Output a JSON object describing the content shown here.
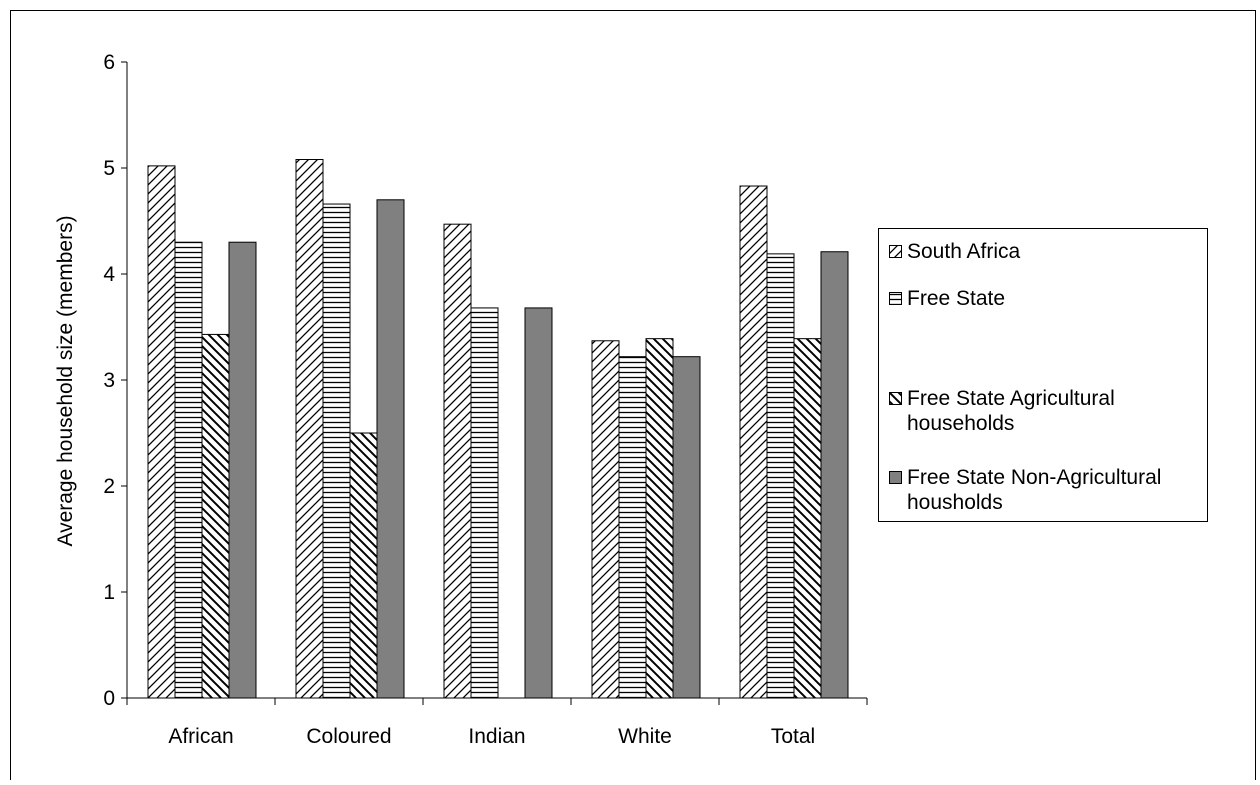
{
  "chart_data": {
    "type": "bar",
    "ylabel": "Average household size (members)",
    "ylim": [
      0,
      6
    ],
    "yticks": [
      "0",
      "1",
      "2",
      "3",
      "4",
      "5",
      "6"
    ],
    "categories": [
      "African",
      "Coloured",
      "Indian",
      "White",
      "Total"
    ],
    "series": [
      {
        "name": "South Africa",
        "pattern": "diag-up",
        "values": [
          5.02,
          5.08,
          4.47,
          3.37,
          4.83
        ]
      },
      {
        "name": "Free State",
        "pattern": "horizontal",
        "values": [
          4.3,
          4.66,
          3.68,
          3.22,
          4.19
        ]
      },
      {
        "name": "Free State Agricultural households",
        "pattern": "diag-down",
        "values": [
          3.43,
          2.5,
          0,
          3.39,
          3.39
        ]
      },
      {
        "name": "Free State  Non-Agricultural housholds",
        "pattern": "solid",
        "values": [
          4.3,
          4.7,
          3.68,
          3.22,
          4.21
        ]
      }
    ],
    "legend_position": "right",
    "grid": false
  },
  "colors": {
    "solid_fill": "#808080",
    "stroke": "#000000",
    "background": "#ffffff"
  }
}
